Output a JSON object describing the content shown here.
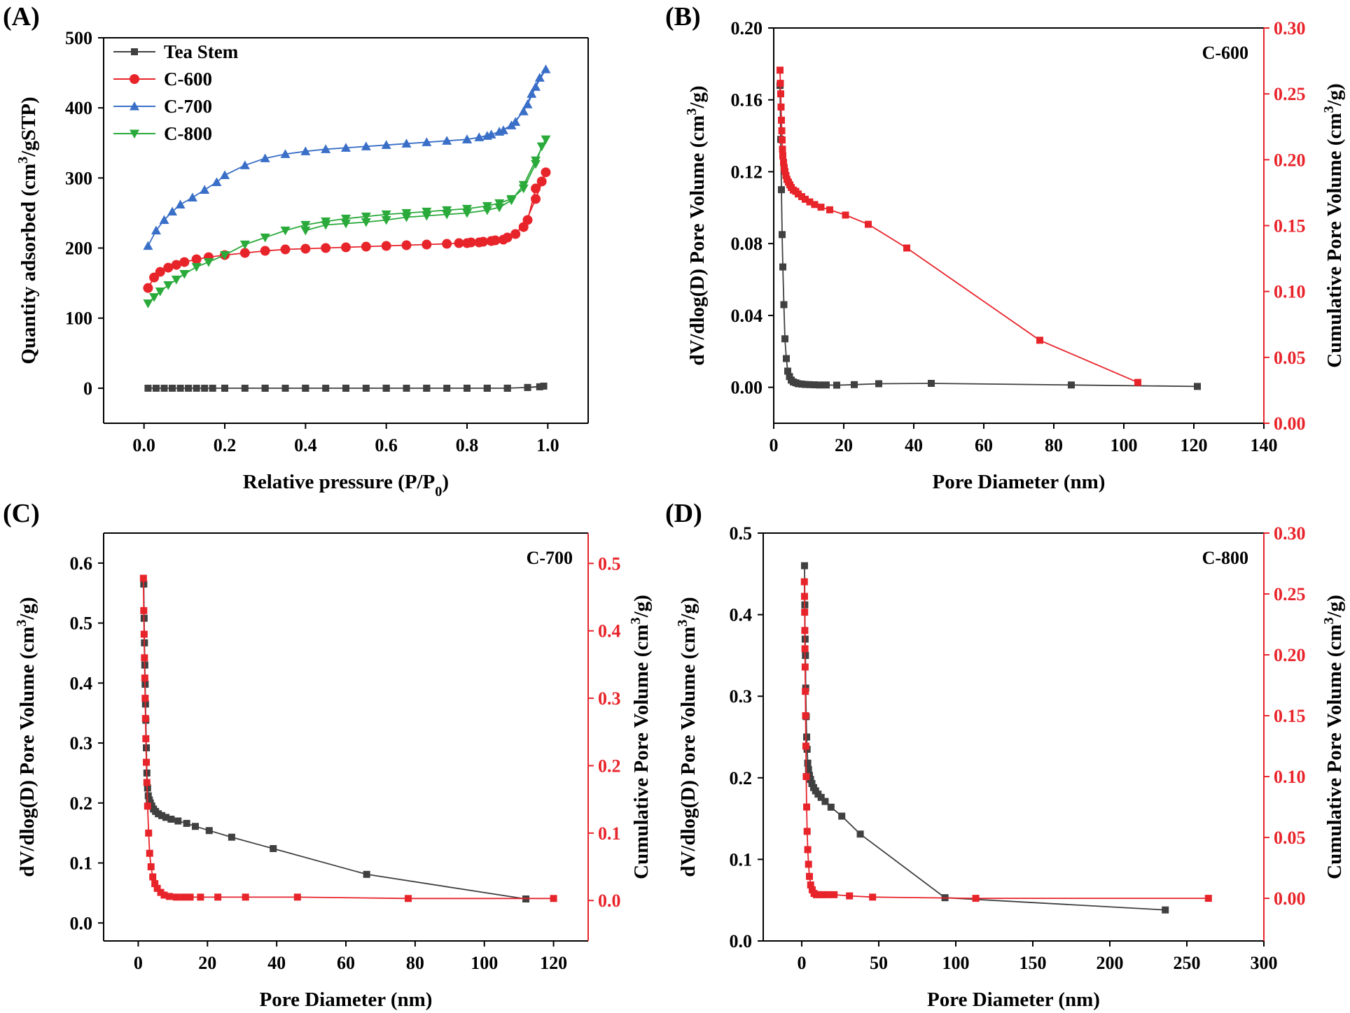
{
  "colors": {
    "axis": "#000000",
    "right_axis": "#e8242b",
    "black_series": "#404040",
    "red_series": "#e8242b",
    "blue_series": "#3a6fc8",
    "green_series": "#2aaa3a"
  },
  "chart_data": [
    {
      "panel": "(A)",
      "type": "line",
      "title": "",
      "xlabel": "Relative pressure (P/P",
      "xlabel_sub": "0",
      "xlabel_end": ")",
      "ylabel_pre": "Quantity adsorbed (cm",
      "ylabel_sup": "3",
      "ylabel_post": "/gSTP)",
      "xlim": [
        -0.1,
        1.1
      ],
      "ylim": [
        -50,
        500
      ],
      "xticks": [
        0.0,
        0.2,
        0.4,
        0.6,
        0.8,
        1.0
      ],
      "xtick_labels": [
        "0.0",
        "0.2",
        "0.4",
        "0.6",
        "0.8",
        "1.0"
      ],
      "yticks": [
        0,
        100,
        200,
        300,
        400,
        500
      ],
      "ytick_labels": [
        "0",
        "100",
        "200",
        "300",
        "400",
        "500"
      ],
      "legend_position": "top-left",
      "series": [
        {
          "name": "Tea Stem",
          "color": "#404040",
          "marker": "square",
          "x": [
            0.01,
            0.03,
            0.05,
            0.07,
            0.09,
            0.11,
            0.13,
            0.15,
            0.17,
            0.2,
            0.25,
            0.3,
            0.35,
            0.4,
            0.45,
            0.5,
            0.55,
            0.6,
            0.65,
            0.7,
            0.75,
            0.8,
            0.85,
            0.9,
            0.95,
            0.98,
            0.99,
            0.95,
            0.9,
            0.85,
            0.8,
            0.7,
            0.6,
            0.5,
            0.4,
            0.3,
            0.2
          ],
          "y": [
            0,
            0,
            0,
            0,
            0,
            0,
            0,
            0,
            0,
            0,
            0,
            0,
            0,
            0,
            0,
            0,
            0,
            0,
            0,
            0,
            0,
            0,
            0,
            0,
            1,
            2,
            3,
            1,
            0,
            0,
            0,
            0,
            0,
            0,
            0,
            0,
            0
          ]
        },
        {
          "name": "C-600",
          "color": "#e8242b",
          "marker": "circle",
          "x": [
            0.01,
            0.025,
            0.04,
            0.06,
            0.08,
            0.1,
            0.13,
            0.16,
            0.2,
            0.25,
            0.3,
            0.35,
            0.4,
            0.45,
            0.5,
            0.55,
            0.6,
            0.65,
            0.7,
            0.75,
            0.8,
            0.83,
            0.86,
            0.89,
            0.92,
            0.95,
            0.97,
            0.985,
            0.995,
            0.97,
            0.94,
            0.9,
            0.87,
            0.84,
            0.81,
            0.78
          ],
          "y": [
            143,
            158,
            166,
            172,
            176,
            180,
            184,
            187,
            190,
            193,
            196,
            198,
            199,
            200,
            201,
            202,
            203,
            204,
            205,
            206,
            207,
            208,
            210,
            212,
            220,
            240,
            285,
            295,
            308,
            270,
            230,
            215,
            211,
            209,
            208,
            207
          ]
        },
        {
          "name": "C-700",
          "color": "#3a6fc8",
          "marker": "triangle-up",
          "x": [
            0.01,
            0.03,
            0.05,
            0.07,
            0.09,
            0.12,
            0.15,
            0.18,
            0.2,
            0.25,
            0.3,
            0.35,
            0.4,
            0.45,
            0.5,
            0.55,
            0.6,
            0.65,
            0.7,
            0.75,
            0.8,
            0.85,
            0.88,
            0.91,
            0.94,
            0.96,
            0.98,
            0.995,
            0.97,
            0.95,
            0.92,
            0.89,
            0.86,
            0.83,
            0.8
          ],
          "y": [
            203,
            225,
            240,
            252,
            262,
            272,
            283,
            294,
            304,
            318,
            328,
            334,
            338,
            341,
            343,
            345,
            347,
            349,
            351,
            353,
            355,
            360,
            366,
            375,
            395,
            420,
            443,
            455,
            430,
            405,
            380,
            368,
            362,
            358,
            355
          ]
        },
        {
          "name": "C-800",
          "color": "#2aaa3a",
          "marker": "triangle-down",
          "x": [
            0.01,
            0.025,
            0.04,
            0.06,
            0.08,
            0.1,
            0.13,
            0.16,
            0.2,
            0.25,
            0.3,
            0.35,
            0.4,
            0.45,
            0.5,
            0.55,
            0.6,
            0.65,
            0.7,
            0.75,
            0.8,
            0.85,
            0.88,
            0.91,
            0.94,
            0.97,
            0.985,
            0.995,
            0.97,
            0.94,
            0.91,
            0.88,
            0.85,
            0.8,
            0.75,
            0.7,
            0.65,
            0.6,
            0.55,
            0.5,
            0.45,
            0.4
          ],
          "y": [
            121,
            130,
            138,
            147,
            155,
            163,
            173,
            180,
            190,
            205,
            215,
            225,
            233,
            238,
            242,
            245,
            248,
            250,
            252,
            254,
            256,
            260,
            264,
            270,
            285,
            320,
            345,
            355,
            325,
            290,
            268,
            258,
            254,
            250,
            248,
            246,
            244,
            240,
            237,
            235,
            233,
            225
          ]
        }
      ]
    },
    {
      "panel": "(B)",
      "type": "line",
      "annotation": "C-600",
      "xlabel": "Pore Diameter (nm)",
      "ylabel_pre": "dV/dlog(D) Pore Volume (cm",
      "ylabel_sup": "3",
      "ylabel_post": "/g)",
      "y2label_pre": "Cumulative Pore Volume (cm",
      "y2label_sup": "3",
      "y2label_post": "/g)",
      "xlim": [
        0,
        140
      ],
      "ylim": [
        -0.02,
        0.2
      ],
      "y2lim": [
        0.0,
        0.3
      ],
      "xticks": [
        0,
        20,
        40,
        60,
        80,
        100,
        120,
        140
      ],
      "xtick_labels": [
        "0",
        "20",
        "40",
        "60",
        "80",
        "100",
        "120",
        "140"
      ],
      "yticks": [
        0.0,
        0.04,
        0.08,
        0.12,
        0.16,
        0.2
      ],
      "ytick_labels": [
        "0.00",
        "0.04",
        "0.08",
        "0.12",
        "0.16",
        "0.20"
      ],
      "y2ticks": [
        0.0,
        0.05,
        0.1,
        0.15,
        0.2,
        0.25,
        0.3
      ],
      "y2tick_labels": [
        "0.00",
        "0.05",
        "0.10",
        "0.15",
        "0.20",
        "0.25",
        "0.30"
      ],
      "series": [
        {
          "name": "dV/dlog(D)",
          "axis": "left",
          "color": "#404040",
          "marker": "square",
          "x": [
            1.8,
            2.0,
            2.2,
            2.4,
            2.6,
            2.9,
            3.2,
            3.6,
            4.0,
            4.5,
            5.0,
            5.6,
            6.3,
            7.0,
            8.0,
            9.0,
            10.2,
            11.5,
            13,
            15,
            18,
            23,
            30,
            45,
            85,
            121
          ],
          "y": [
            0.168,
            0.138,
            0.11,
            0.085,
            0.067,
            0.046,
            0.027,
            0.016,
            0.009,
            0.006,
            0.004,
            0.003,
            0.0025,
            0.002,
            0.0018,
            0.0016,
            0.0015,
            0.0014,
            0.0013,
            0.0013,
            0.0012,
            0.0015,
            0.002,
            0.0022,
            0.0013,
            0.0005
          ]
        },
        {
          "name": "Cumulative Pore Volume",
          "axis": "right",
          "color": "#e8242b",
          "marker": "square",
          "x": [
            1.8,
            1.9,
            2.0,
            2.1,
            2.2,
            2.3,
            2.4,
            2.5,
            2.6,
            2.8,
            3.0,
            3.2,
            3.5,
            3.8,
            4.2,
            4.6,
            5.0,
            5.6,
            6.3,
            7.0,
            8.0,
            9.0,
            10.3,
            11.7,
            13.5,
            16,
            20.5,
            27,
            38,
            76,
            104
          ],
          "y": [
            0.268,
            0.258,
            0.25,
            0.24,
            0.23,
            0.222,
            0.215,
            0.208,
            0.203,
            0.198,
            0.194,
            0.191,
            0.188,
            0.185,
            0.183,
            0.181,
            0.179,
            0.177,
            0.176,
            0.174,
            0.172,
            0.17,
            0.168,
            0.166,
            0.164,
            0.162,
            0.158,
            0.151,
            0.133,
            0.063,
            0.031
          ]
        }
      ]
    },
    {
      "panel": "(C)",
      "type": "line",
      "annotation": "C-700",
      "xlabel": "Pore Diameter (nm)",
      "ylabel_pre": "dV/dlog(D) Pore Volume (cm",
      "ylabel_sup": "3",
      "ylabel_post": "/g)",
      "y2label_pre": "Cumulative Pore Volume (cm",
      "y2label_sup": "3",
      "y2label_post": "/g)",
      "xlim": [
        -10,
        130
      ],
      "ylim": [
        -0.03,
        0.65
      ],
      "y2lim": [
        -0.06,
        0.545
      ],
      "xticks": [
        0,
        20,
        40,
        60,
        80,
        100,
        120
      ],
      "xtick_labels": [
        "0",
        "20",
        "40",
        "60",
        "80",
        "100",
        "120"
      ],
      "yticks": [
        0.0,
        0.1,
        0.2,
        0.3,
        0.4,
        0.5,
        0.6
      ],
      "ytick_labels": [
        "0.0",
        "0.1",
        "0.2",
        "0.3",
        "0.4",
        "0.5",
        "0.6"
      ],
      "y2ticks": [
        0.0,
        0.1,
        0.2,
        0.3,
        0.4,
        0.5
      ],
      "y2tick_labels": [
        "0.0",
        "0.1",
        "0.2",
        "0.3",
        "0.4",
        "0.5"
      ],
      "series": [
        {
          "name": "dV/dlog(D)",
          "axis": "left",
          "color": "#404040",
          "marker": "square",
          "x": [
            1.6,
            1.7,
            1.8,
            1.9,
            2.0,
            2.1,
            2.2,
            2.35,
            2.5,
            2.7,
            2.9,
            3.2,
            3.5,
            3.9,
            4.4,
            5.0,
            5.8,
            6.8,
            8.0,
            9.5,
            11.5,
            14,
            16.5,
            20.5,
            27,
            39,
            66,
            112
          ],
          "y": [
            0.565,
            0.508,
            0.467,
            0.43,
            0.398,
            0.365,
            0.338,
            0.292,
            0.25,
            0.225,
            0.212,
            0.205,
            0.2,
            0.195,
            0.19,
            0.186,
            0.182,
            0.179,
            0.176,
            0.173,
            0.17,
            0.166,
            0.161,
            0.154,
            0.143,
            0.124,
            0.081,
            0.04
          ]
        },
        {
          "name": "Cumulative Pore Volume",
          "axis": "right",
          "color": "#e8242b",
          "marker": "square",
          "x": [
            1.5,
            1.6,
            1.7,
            1.8,
            1.9,
            2.0,
            2.1,
            2.2,
            2.35,
            2.5,
            2.7,
            3.0,
            3.3,
            3.7,
            4.2,
            4.8,
            5.5,
            6.5,
            7.5,
            9.0,
            11,
            13,
            15,
            18,
            23,
            31,
            46,
            78,
            120
          ],
          "y": [
            0.478,
            0.43,
            0.395,
            0.36,
            0.33,
            0.3,
            0.27,
            0.24,
            0.205,
            0.175,
            0.14,
            0.1,
            0.07,
            0.05,
            0.035,
            0.025,
            0.018,
            0.012,
            0.008,
            0.006,
            0.005,
            0.005,
            0.005,
            0.005,
            0.005,
            0.005,
            0.005,
            0.003,
            0.003
          ]
        }
      ]
    },
    {
      "panel": "(D)",
      "type": "line",
      "annotation": "C-800",
      "xlabel": "Pore Diameter (nm)",
      "ylabel_pre": "dV/dlog(D) Pore Volume (cm",
      "ylabel_sup": "3",
      "ylabel_post": "/g)",
      "y2label_pre": "Cumulative Pore Volume (cm",
      "y2label_sup": "3",
      "y2label_post": "/g)",
      "xlim": [
        -25,
        300
      ],
      "ylim": [
        0.0,
        0.5
      ],
      "y2lim": [
        -0.035,
        0.3
      ],
      "xticks": [
        0,
        50,
        100,
        150,
        200,
        250,
        300
      ],
      "xtick_labels": [
        "0",
        "50",
        "100",
        "150",
        "200",
        "250",
        "300"
      ],
      "yticks": [
        0.0,
        0.1,
        0.2,
        0.3,
        0.4,
        0.5
      ],
      "ytick_labels": [
        "0.0",
        "0.1",
        "0.2",
        "0.3",
        "0.4",
        "0.5"
      ],
      "y2ticks": [
        0.0,
        0.05,
        0.1,
        0.15,
        0.2,
        0.25,
        0.3
      ],
      "y2tick_labels": [
        "0.00",
        "0.05",
        "0.10",
        "0.15",
        "0.20",
        "0.25",
        "0.30"
      ],
      "series": [
        {
          "name": "dV/dlog(D)",
          "axis": "left",
          "color": "#404040",
          "marker": "square",
          "x": [
            1.8,
            2.0,
            2.2,
            2.4,
            2.6,
            2.9,
            3.2,
            3.5,
            3.9,
            4.4,
            5.0,
            5.7,
            6.6,
            7.7,
            9.0,
            10.6,
            12.6,
            15.2,
            19,
            26,
            38,
            93,
            236
          ],
          "y": [
            0.46,
            0.412,
            0.37,
            0.35,
            0.31,
            0.275,
            0.25,
            0.235,
            0.218,
            0.21,
            0.203,
            0.198,
            0.193,
            0.188,
            0.184,
            0.18,
            0.176,
            0.171,
            0.164,
            0.153,
            0.131,
            0.053,
            0.038
          ]
        },
        {
          "name": "Cumulative Pore Volume",
          "axis": "right",
          "color": "#e8242b",
          "marker": "square",
          "x": [
            1.7,
            1.8,
            1.9,
            2.0,
            2.1,
            2.2,
            2.35,
            2.5,
            2.7,
            2.9,
            3.2,
            3.5,
            3.9,
            4.4,
            5.0,
            5.8,
            6.8,
            8.0,
            9.5,
            11.5,
            14,
            17,
            21,
            31,
            46,
            113,
            264
          ],
          "y": [
            0.26,
            0.248,
            0.235,
            0.22,
            0.205,
            0.19,
            0.17,
            0.15,
            0.125,
            0.1,
            0.075,
            0.055,
            0.04,
            0.028,
            0.018,
            0.011,
            0.007,
            0.004,
            0.003,
            0.003,
            0.003,
            0.003,
            0.003,
            0.002,
            0.001,
            0.0,
            0.0
          ]
        }
      ]
    }
  ]
}
